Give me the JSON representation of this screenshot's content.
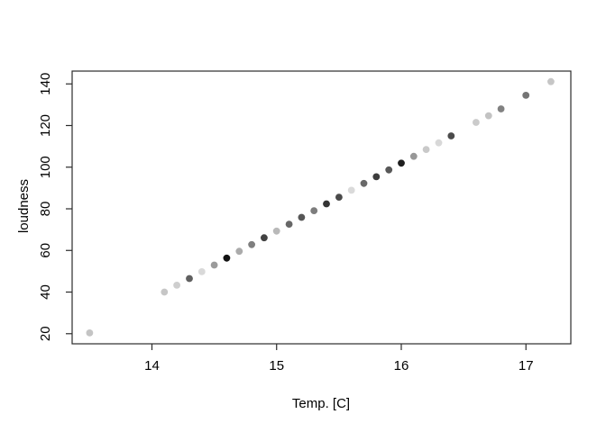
{
  "chart_data": {
    "type": "scatter",
    "title": "",
    "xlabel": "Temp. [C]",
    "ylabel": "loudness",
    "x_ticks": [
      14,
      15,
      16,
      17
    ],
    "y_ticks": [
      20,
      40,
      60,
      80,
      100,
      120,
      140
    ],
    "xlim": [
      13.36,
      17.36
    ],
    "ylim": [
      15.15,
      146.15
    ],
    "grid": false,
    "legend": null,
    "marker": "filled-circle",
    "frame_color": "#2b2b2b",
    "text_color": "#000000",
    "points": [
      {
        "temp": 13.5,
        "loudness": 20.4,
        "color": "#c4c4c4"
      },
      {
        "temp": 14.1,
        "loudness": 40.0,
        "color": "#c6c6c6"
      },
      {
        "temp": 14.2,
        "loudness": 43.3,
        "color": "#cecece"
      },
      {
        "temp": 14.3,
        "loudness": 46.5,
        "color": "#606060"
      },
      {
        "temp": 14.4,
        "loudness": 49.8,
        "color": "#d9d9d9"
      },
      {
        "temp": 14.5,
        "loudness": 53.0,
        "color": "#9b9b9b"
      },
      {
        "temp": 14.6,
        "loudness": 56.3,
        "color": "#121212"
      },
      {
        "temp": 14.7,
        "loudness": 59.6,
        "color": "#ababab"
      },
      {
        "temp": 14.8,
        "loudness": 62.8,
        "color": "#7f7f7f"
      },
      {
        "temp": 14.9,
        "loudness": 66.1,
        "color": "#424242"
      },
      {
        "temp": 15.0,
        "loudness": 69.3,
        "color": "#b9b9b9"
      },
      {
        "temp": 15.1,
        "loudness": 72.6,
        "color": "#676767"
      },
      {
        "temp": 15.2,
        "loudness": 75.9,
        "color": "#565656"
      },
      {
        "temp": 15.3,
        "loudness": 79.1,
        "color": "#7d7d7d"
      },
      {
        "temp": 15.4,
        "loudness": 82.4,
        "color": "#343434"
      },
      {
        "temp": 15.5,
        "loudness": 85.6,
        "color": "#4a4a4a"
      },
      {
        "temp": 15.6,
        "loudness": 88.9,
        "color": "#dadada"
      },
      {
        "temp": 15.7,
        "loudness": 92.2,
        "color": "#696969"
      },
      {
        "temp": 15.8,
        "loudness": 95.4,
        "color": "#3d3d3d"
      },
      {
        "temp": 15.9,
        "loudness": 98.7,
        "color": "#585858"
      },
      {
        "temp": 16.0,
        "loudness": 101.9,
        "color": "#1f1f1f"
      },
      {
        "temp": 16.1,
        "loudness": 105.2,
        "color": "#989898"
      },
      {
        "temp": 16.2,
        "loudness": 108.5,
        "color": "#c9c9c9"
      },
      {
        "temp": 16.3,
        "loudness": 111.7,
        "color": "#d8d8d8"
      },
      {
        "temp": 16.4,
        "loudness": 115.0,
        "color": "#4b4b4b"
      },
      {
        "temp": 16.6,
        "loudness": 121.5,
        "color": "#cbcbcb"
      },
      {
        "temp": 16.7,
        "loudness": 124.7,
        "color": "#c3c3c3"
      },
      {
        "temp": 16.8,
        "loudness": 128.0,
        "color": "#818181"
      },
      {
        "temp": 17.0,
        "loudness": 134.5,
        "color": "#757575"
      },
      {
        "temp": 17.2,
        "loudness": 141.1,
        "color": "#c6c6c6"
      }
    ]
  }
}
